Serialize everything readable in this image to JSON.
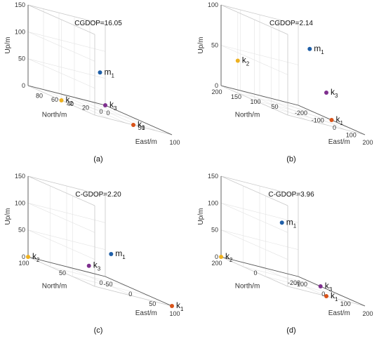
{
  "chart_data": [
    {
      "type": "scatter",
      "panel_label": "(a)",
      "title": "CGDOP=16.05",
      "xlabel": "East/m",
      "ylabel": "North/m",
      "zlabel": "Up/m",
      "xlim": [
        0,
        100
      ],
      "ylim": [
        0,
        100
      ],
      "zlim": [
        0,
        150
      ],
      "x_ticks": [
        "0",
        "50",
        "100"
      ],
      "y_ticks": [
        "0",
        "20",
        "40",
        "60",
        "80"
      ],
      "z_ticks": [
        "0",
        "50",
        "100",
        "150"
      ],
      "grid": true,
      "points": [
        {
          "label": "m",
          "sub": "1",
          "x": 50,
          "y": 50,
          "z": 70,
          "color": "#1f5fa8"
        },
        {
          "label": "k",
          "sub": "1",
          "x": 100,
          "y": 50,
          "z": 0,
          "color": "#d95319"
        },
        {
          "label": "k",
          "sub": "2",
          "x": 50,
          "y": 100,
          "z": 0,
          "color": "#edb120"
        },
        {
          "label": "k",
          "sub": "3",
          "x": 0,
          "y": 0,
          "z": 0,
          "color": "#7e2f8e"
        }
      ]
    },
    {
      "type": "scatter",
      "panel_label": "(b)",
      "title": "CGDOP=2.14",
      "xlabel": "East/m",
      "ylabel": "North/m",
      "zlabel": "Up/m",
      "xlim": [
        -200,
        200
      ],
      "ylim": [
        0,
        200
      ],
      "zlim": [
        0,
        100
      ],
      "x_ticks": [
        "-200",
        "-100",
        "0",
        "100",
        "200"
      ],
      "y_ticks": [
        "50",
        "100",
        "150",
        "200"
      ],
      "z_ticks": [
        "0",
        "50",
        "100"
      ],
      "grid": true,
      "points": [
        {
          "label": "m",
          "sub": "1",
          "x": 100,
          "y": 100,
          "z": 85,
          "color": "#1f5fa8"
        },
        {
          "label": "k",
          "sub": "2",
          "x": -100,
          "y": 200,
          "z": 40,
          "color": "#edb120"
        },
        {
          "label": "k",
          "sub": "3",
          "x": 200,
          "y": 100,
          "z": 40,
          "color": "#7e2f8e"
        },
        {
          "label": "k",
          "sub": "1",
          "x": 0,
          "y": 0,
          "z": 0,
          "color": "#d95319"
        }
      ]
    },
    {
      "type": "scatter",
      "panel_label": "(c)",
      "title": "C-GDOP=2.20",
      "xlabel": "East/m",
      "ylabel": "North/m",
      "zlabel": "Up/m",
      "xlim": [
        -50,
        100
      ],
      "ylim": [
        0,
        100
      ],
      "zlim": [
        0,
        150
      ],
      "x_ticks": [
        "-50",
        "0",
        "50",
        "100"
      ],
      "y_ticks": [
        "0",
        "50",
        "100"
      ],
      "z_ticks": [
        "0",
        "50",
        "100",
        "150"
      ],
      "grid": true,
      "points": [
        {
          "label": "m",
          "sub": "1",
          "x": 50,
          "y": 50,
          "z": 60,
          "color": "#1f5fa8"
        },
        {
          "label": "k",
          "sub": "3",
          "x": 0,
          "y": 50,
          "z": 20,
          "color": "#7e2f8e"
        },
        {
          "label": "k",
          "sub": "2",
          "x": -50,
          "y": 100,
          "z": 0,
          "color": "#edb120"
        },
        {
          "label": "k",
          "sub": "1",
          "x": 100,
          "y": 0,
          "z": 0,
          "color": "#d95319"
        }
      ]
    },
    {
      "type": "scatter",
      "panel_label": "(d)",
      "title": "C-GDOP=3.96",
      "xlabel": "East/m",
      "ylabel": "North/m",
      "zlabel": "Up/m",
      "xlim": [
        -100,
        200
      ],
      "ylim": [
        -200,
        200
      ],
      "zlim": [
        0,
        150
      ],
      "x_ticks": [
        "-100",
        "0",
        "100",
        "200"
      ],
      "y_ticks": [
        "-200",
        "0",
        "200"
      ],
      "z_ticks": [
        "0",
        "50",
        "100",
        "150"
      ],
      "grid": true,
      "points": [
        {
          "label": "m",
          "sub": "1",
          "x": 0,
          "y": 0,
          "z": 100,
          "color": "#1f5fa8"
        },
        {
          "label": "k",
          "sub": "1",
          "x": 200,
          "y": 0,
          "z": 0,
          "color": "#d95319"
        },
        {
          "label": "k",
          "sub": "2",
          "x": -100,
          "y": 200,
          "z": 0,
          "color": "#edb120"
        },
        {
          "label": "k",
          "sub": "3",
          "x": 0,
          "y": -200,
          "z": 0,
          "color": "#7e2f8e"
        }
      ]
    }
  ]
}
